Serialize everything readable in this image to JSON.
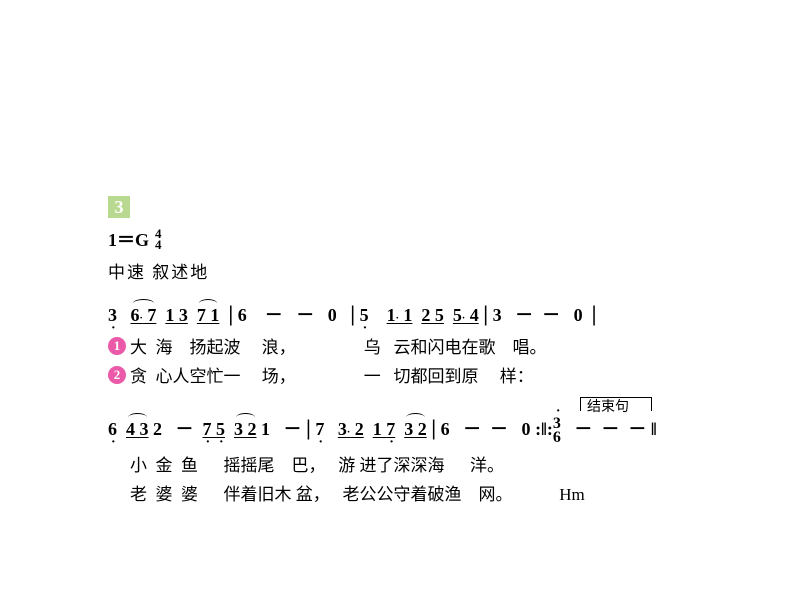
{
  "header": {
    "section_number": "3",
    "key": "1＝G",
    "time_sig_top": "4",
    "time_sig_bottom": "4",
    "tempo": "中速 叙述地"
  },
  "system1": {
    "notes_raw": "3   6. 7  1 3  7 1  | 6    －   －   0   | 5    1. 1  2 5  5. 4 | 3   －  －   0  |",
    "verse1_badge": "1",
    "verse1_lyrics": "大  海    扬起波     浪，                乌   云和闪电在歌    唱。",
    "verse2_badge": "2",
    "verse2_lyrics": "贪  心人空忙一     场，                一   切都回到原     样："
  },
  "system2": {
    "ending_label": "结束句",
    "notes_raw": "6  4 3 2   －  7 5  3 2 1   － | 7   3. 2  1 7  3 2 | 6   －  －   0 :‖: 3   －  －  － ‖",
    "stacked_top": "3",
    "stacked_bottom": "6",
    "verse1_lyrics": "小  金  鱼      摇摇尾    巴，   游 进了深深海      洋。",
    "verse2_lyrics": "老  婆  婆      伴着旧木 盆，   老公公守着破渔    网。           Hm"
  },
  "colors": {
    "section_badge_bg": "#b8d98f",
    "verse_badge_bg": "#ea5aa8",
    "badge_text": "#ffffff",
    "text": "#000000",
    "background": "#ffffff"
  },
  "typography": {
    "notation_fontsize": 18,
    "lyric_fontsize": 17,
    "tempo_fontsize": 17
  }
}
